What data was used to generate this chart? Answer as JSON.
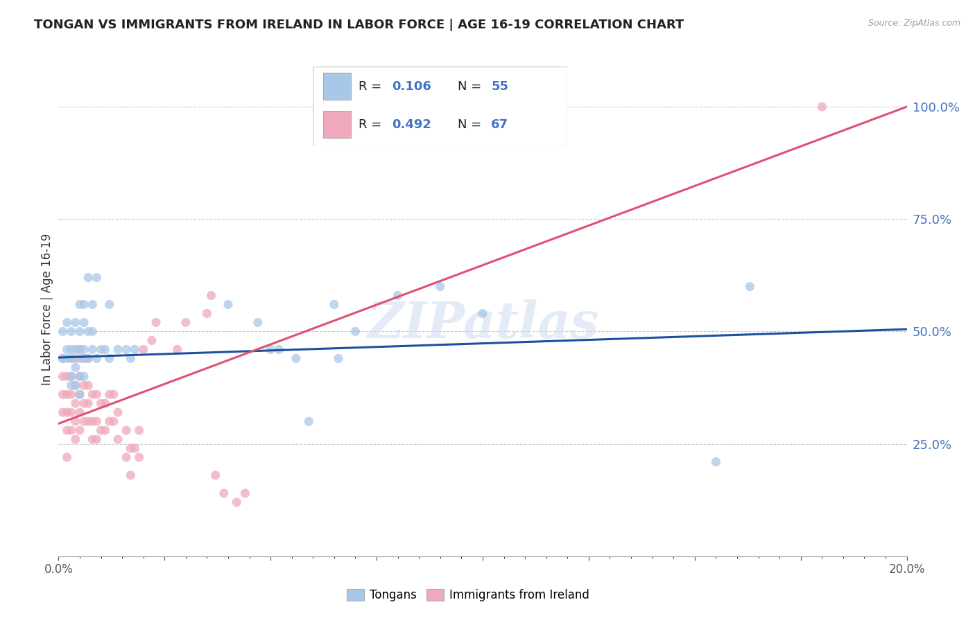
{
  "title": "TONGAN VS IMMIGRANTS FROM IRELAND IN LABOR FORCE | AGE 16-19 CORRELATION CHART",
  "source": "Source: ZipAtlas.com",
  "ylabel": "In Labor Force | Age 16-19",
  "legend_label_blue": "Tongans",
  "legend_label_pink": "Immigrants from Ireland",
  "xlim": [
    0.0,
    0.2
  ],
  "ylim": [
    0.0,
    1.1
  ],
  "blue_color": "#A8C8E8",
  "pink_color": "#F0A8BC",
  "blue_line_color": "#1B4FA0",
  "pink_line_color": "#E05070",
  "right_axis_color": "#4472C4",
  "watermark": "ZIPatlas",
  "blue_x": [
    0.001,
    0.001,
    0.002,
    0.002,
    0.002,
    0.003,
    0.003,
    0.003,
    0.003,
    0.003,
    0.004,
    0.004,
    0.004,
    0.004,
    0.005,
    0.005,
    0.005,
    0.005,
    0.005,
    0.005,
    0.006,
    0.006,
    0.006,
    0.006,
    0.006,
    0.007,
    0.007,
    0.007,
    0.008,
    0.008,
    0.008,
    0.009,
    0.009,
    0.01,
    0.011,
    0.012,
    0.012,
    0.014,
    0.016,
    0.017,
    0.018,
    0.04,
    0.047,
    0.05,
    0.052,
    0.056,
    0.059,
    0.065,
    0.066,
    0.07,
    0.08,
    0.09,
    0.1,
    0.155,
    0.163
  ],
  "blue_y": [
    0.44,
    0.5,
    0.44,
    0.46,
    0.52,
    0.38,
    0.4,
    0.44,
    0.46,
    0.5,
    0.38,
    0.42,
    0.46,
    0.52,
    0.36,
    0.4,
    0.44,
    0.46,
    0.5,
    0.56,
    0.4,
    0.44,
    0.46,
    0.52,
    0.56,
    0.44,
    0.5,
    0.62,
    0.46,
    0.5,
    0.56,
    0.44,
    0.62,
    0.46,
    0.46,
    0.44,
    0.56,
    0.46,
    0.46,
    0.44,
    0.46,
    0.56,
    0.52,
    0.46,
    0.46,
    0.44,
    0.3,
    0.56,
    0.44,
    0.5,
    0.58,
    0.6,
    0.54,
    0.21,
    0.6
  ],
  "pink_x": [
    0.001,
    0.001,
    0.001,
    0.001,
    0.002,
    0.002,
    0.002,
    0.002,
    0.002,
    0.003,
    0.003,
    0.003,
    0.003,
    0.003,
    0.004,
    0.004,
    0.004,
    0.004,
    0.004,
    0.005,
    0.005,
    0.005,
    0.005,
    0.005,
    0.006,
    0.006,
    0.006,
    0.006,
    0.007,
    0.007,
    0.007,
    0.007,
    0.008,
    0.008,
    0.008,
    0.009,
    0.009,
    0.009,
    0.01,
    0.01,
    0.011,
    0.011,
    0.012,
    0.012,
    0.013,
    0.013,
    0.014,
    0.014,
    0.016,
    0.016,
    0.017,
    0.017,
    0.018,
    0.019,
    0.019,
    0.02,
    0.022,
    0.023,
    0.028,
    0.03,
    0.035,
    0.036,
    0.037,
    0.039,
    0.042,
    0.044,
    0.18
  ],
  "pink_y": [
    0.32,
    0.36,
    0.4,
    0.44,
    0.22,
    0.28,
    0.32,
    0.36,
    0.4,
    0.28,
    0.32,
    0.36,
    0.4,
    0.44,
    0.26,
    0.3,
    0.34,
    0.38,
    0.44,
    0.28,
    0.32,
    0.36,
    0.4,
    0.46,
    0.3,
    0.34,
    0.38,
    0.44,
    0.3,
    0.34,
    0.38,
    0.44,
    0.26,
    0.3,
    0.36,
    0.26,
    0.3,
    0.36,
    0.28,
    0.34,
    0.28,
    0.34,
    0.3,
    0.36,
    0.3,
    0.36,
    0.26,
    0.32,
    0.22,
    0.28,
    0.18,
    0.24,
    0.24,
    0.22,
    0.28,
    0.46,
    0.48,
    0.52,
    0.46,
    0.52,
    0.54,
    0.58,
    0.18,
    0.14,
    0.12,
    0.14,
    1.0
  ],
  "blue_trend_x": [
    0.0,
    0.2
  ],
  "blue_trend_y": [
    0.442,
    0.505
  ],
  "pink_trend_x": [
    0.0,
    0.2
  ],
  "pink_trend_y": [
    0.295,
    1.0
  ]
}
